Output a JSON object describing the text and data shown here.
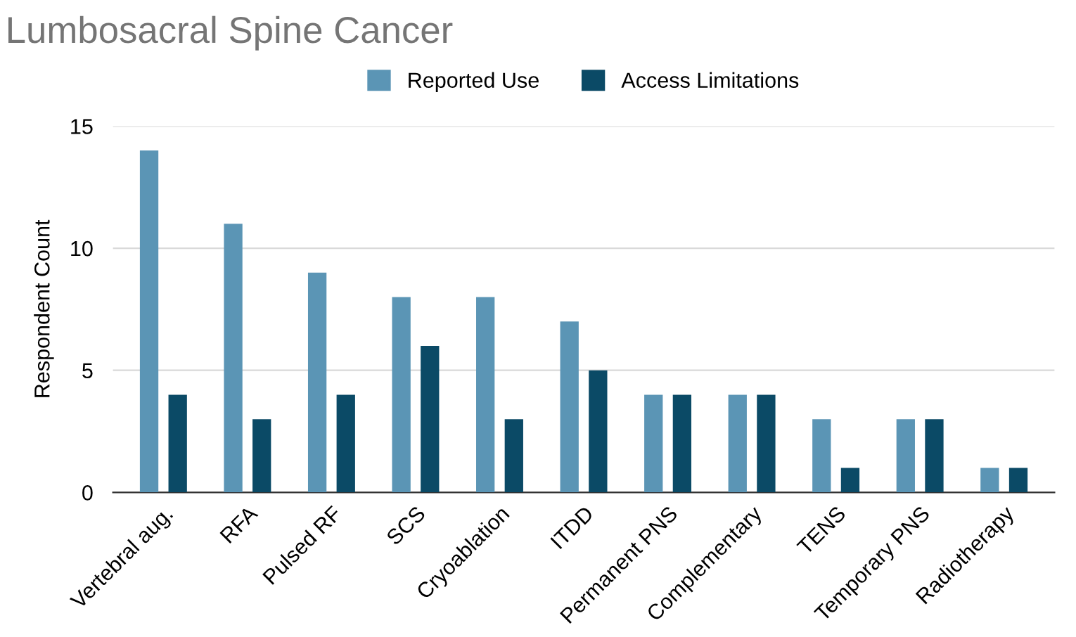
{
  "chart_data": {
    "type": "bar",
    "title": "Lumbosacral Spine Cancer",
    "ylabel": "Respondent Count",
    "categories": [
      "Vertebral aug.",
      "RFA",
      "Pulsed RF",
      "SCS",
      "Cryoablation",
      "ITDD",
      "Permanent PNS",
      "Complementary",
      "TENS",
      "Temporary PNS",
      "Radiotherapy"
    ],
    "series": [
      {
        "name": "Reported Use",
        "color": "#5b95b5",
        "values": [
          14,
          11,
          9,
          8,
          8,
          7,
          4,
          4,
          3,
          3,
          1
        ]
      },
      {
        "name": "Access Limitations",
        "color": "#0b4a66",
        "values": [
          4,
          3,
          4,
          6,
          3,
          5,
          4,
          4,
          1,
          3,
          1
        ]
      }
    ],
    "ylim": [
      0,
      15
    ],
    "yticks": [
      0,
      5,
      10,
      15
    ],
    "grid": "y",
    "legend": "top"
  }
}
